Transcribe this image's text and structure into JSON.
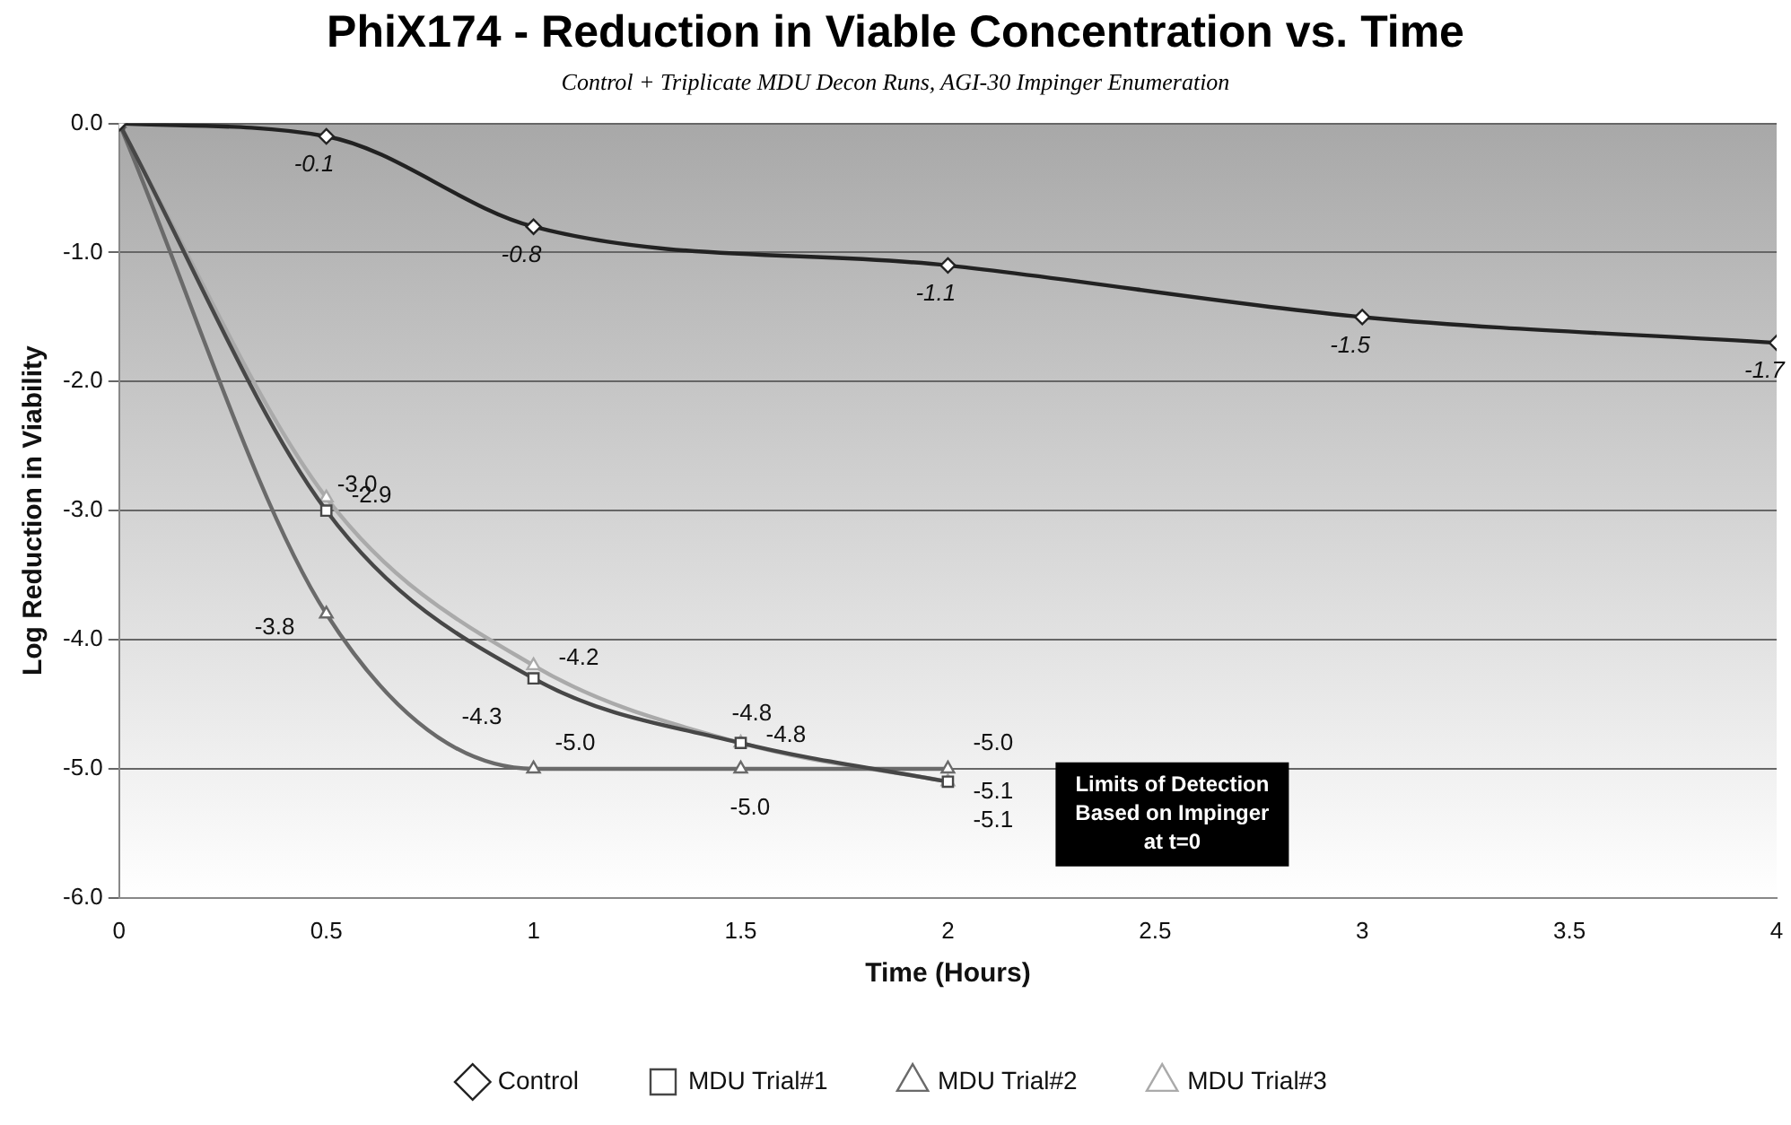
{
  "chart_data": {
    "type": "line",
    "title": "PhiX174 - Reduction in Viable Concentration vs. Time",
    "subtitle": "Control + Triplicate MDU Decon Runs, AGI-30 Impinger Enumeration",
    "xlabel": "Time (Hours)",
    "ylabel": "Log Reduction in Viability",
    "series": [
      {
        "name": "Control",
        "color": "#222222",
        "marker": "diamond",
        "x": [
          0,
          0.5,
          1,
          2,
          3,
          4
        ],
        "values": [
          0,
          -0.1,
          -0.8,
          -1.1,
          -1.5,
          -1.7
        ],
        "value_labels": [
          null,
          "-0.1",
          "-0.8",
          "-1.1",
          "-1.5",
          "-1.7"
        ]
      },
      {
        "name": "MDU Trial#1",
        "color": "#474747",
        "marker": "square",
        "x": [
          0,
          0.5,
          1,
          1.5,
          2
        ],
        "values": [
          0,
          -3.0,
          -4.3,
          -4.8,
          -5.1
        ],
        "value_labels": [
          null,
          "-3.0",
          "-4.3",
          "-4.8",
          "-5.1"
        ]
      },
      {
        "name": "MDU Trial#2",
        "color": "#6a6a6a",
        "marker": "triangle",
        "x": [
          0,
          0.5,
          1,
          1.5,
          2
        ],
        "values": [
          0,
          -3.8,
          -5.0,
          -5.0,
          -5.0
        ],
        "value_labels": [
          null,
          "-3.8",
          "-5.0",
          "-5.0",
          "-5.0"
        ]
      },
      {
        "name": "MDU Trial#3",
        "color": "#aaaaaa",
        "marker": "triangle",
        "x": [
          0,
          0.5,
          1,
          1.5,
          2
        ],
        "values": [
          0,
          -2.9,
          -4.2,
          -4.8,
          -5.1
        ],
        "value_labels": [
          null,
          "-2.9",
          "-4.2",
          "-4.8",
          "-5.1"
        ]
      }
    ],
    "xlim": [
      0,
      4
    ],
    "xticks": [
      0,
      0.5,
      1,
      1.5,
      2,
      2.5,
      3,
      3.5,
      4
    ],
    "ylim": [
      -6,
      0
    ],
    "yticks": [
      {
        "value": 0,
        "label": "0.0"
      },
      {
        "value": -1,
        "label": "-1.0"
      },
      {
        "value": -2,
        "label": "-2.0"
      },
      {
        "value": -3,
        "label": "-3.0"
      },
      {
        "value": -4,
        "label": "-4.0"
      },
      {
        "value": -5,
        "label": "-5.0"
      },
      {
        "value": -6,
        "label": "-6.0"
      }
    ],
    "grid": "y",
    "legend": "bottom",
    "line_style": "solid",
    "annotations": [
      "Limits of Detection\nBased on Impinger\nat t=0"
    ]
  }
}
